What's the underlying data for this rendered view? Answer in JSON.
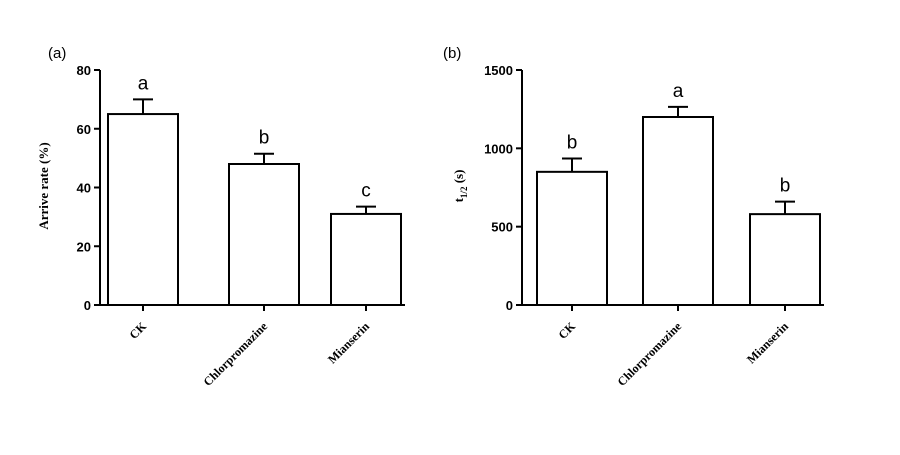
{
  "chart_data": [
    {
      "type": "bar",
      "panel_label": "(a)",
      "categories": [
        "CK",
        "Chlorpromazine",
        "Mianserin"
      ],
      "values": [
        65,
        48,
        31
      ],
      "errors": [
        5,
        3.5,
        2.5
      ],
      "significance": [
        "a",
        "b",
        "c"
      ],
      "ylabel": "Arrive rate (%)",
      "ylim": [
        0,
        80
      ],
      "yticks": [
        0,
        20,
        40,
        60,
        80
      ],
      "grid": false,
      "legend": "none"
    },
    {
      "type": "bar",
      "panel_label": "(b)",
      "categories": [
        "CK",
        "Chlorpromazine",
        "Mianserin"
      ],
      "values": [
        850,
        1200,
        580
      ],
      "errors": [
        85,
        65,
        80
      ],
      "significance": [
        "b",
        "a",
        "b"
      ],
      "ylabel_main": "t",
      "ylabel_sub": "1/2",
      "ylabel_unit": " (s)",
      "ylim": [
        0,
        1500
      ],
      "yticks": [
        0,
        500,
        1000,
        1500
      ],
      "grid": false,
      "legend": "none"
    }
  ]
}
